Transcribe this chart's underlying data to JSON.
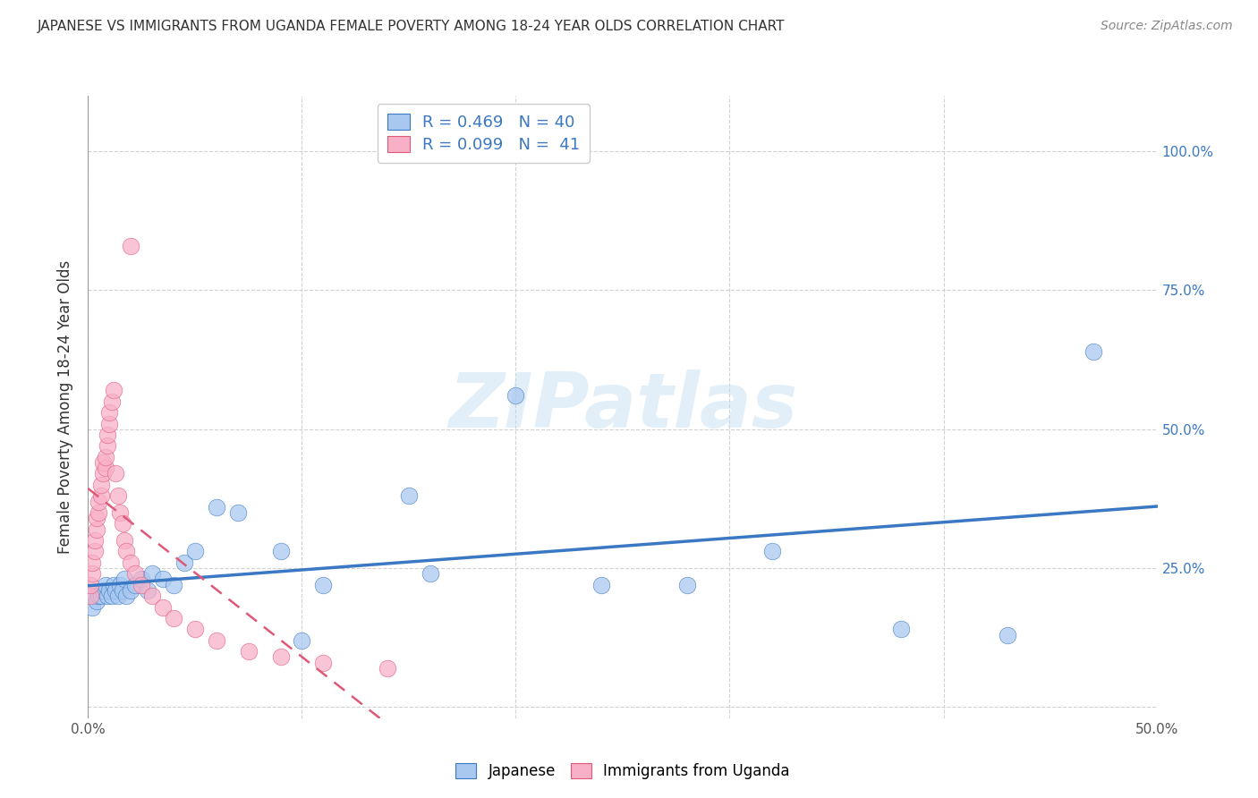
{
  "title": "JAPANESE VS IMMIGRANTS FROM UGANDA FEMALE POVERTY AMONG 18-24 YEAR OLDS CORRELATION CHART",
  "source": "Source: ZipAtlas.com",
  "ylabel": "Female Poverty Among 18-24 Year Olds",
  "xlim": [
    0.0,
    0.5
  ],
  "ylim": [
    -0.02,
    1.1
  ],
  "xticks": [
    0.0,
    0.1,
    0.2,
    0.3,
    0.4,
    0.5
  ],
  "xticklabels": [
    "0.0%",
    "",
    "",
    "",
    "",
    "50.0%"
  ],
  "yticks": [
    0.0,
    0.25,
    0.5,
    0.75,
    1.0
  ],
  "yticklabels_right": [
    "",
    "25.0%",
    "50.0%",
    "75.0%",
    "100.0%"
  ],
  "watermark_text": "ZIPatlas",
  "legend_line1": "R = 0.469   N = 40",
  "legend_line2": "R = 0.099   N =  41",
  "color_japanese": "#A8C8F0",
  "color_uganda": "#F8B0C8",
  "line_color_japanese": "#3B78C3",
  "line_color_uganda": "#E05878",
  "japanese_x": [
    0.002,
    0.003,
    0.004,
    0.005,
    0.006,
    0.007,
    0.008,
    0.009,
    0.01,
    0.011,
    0.012,
    0.013,
    0.014,
    0.015,
    0.016,
    0.017,
    0.018,
    0.02,
    0.022,
    0.025,
    0.028,
    0.03,
    0.035,
    0.04,
    0.045,
    0.05,
    0.06,
    0.07,
    0.09,
    0.1,
    0.11,
    0.15,
    0.16,
    0.2,
    0.24,
    0.28,
    0.32,
    0.38,
    0.43,
    0.47
  ],
  "japanese_y": [
    0.18,
    0.2,
    0.19,
    0.2,
    0.2,
    0.21,
    0.22,
    0.2,
    0.21,
    0.2,
    0.22,
    0.21,
    0.2,
    0.22,
    0.21,
    0.23,
    0.2,
    0.21,
    0.22,
    0.23,
    0.21,
    0.24,
    0.23,
    0.22,
    0.26,
    0.28,
    0.36,
    0.35,
    0.28,
    0.12,
    0.22,
    0.38,
    0.24,
    0.56,
    0.22,
    0.22,
    0.28,
    0.14,
    0.13,
    0.64
  ],
  "uganda_x": [
    0.001,
    0.001,
    0.002,
    0.002,
    0.003,
    0.003,
    0.004,
    0.004,
    0.005,
    0.005,
    0.006,
    0.006,
    0.007,
    0.007,
    0.008,
    0.008,
    0.009,
    0.009,
    0.01,
    0.01,
    0.011,
    0.012,
    0.013,
    0.014,
    0.015,
    0.016,
    0.017,
    0.018,
    0.02,
    0.022,
    0.025,
    0.03,
    0.035,
    0.04,
    0.05,
    0.06,
    0.075,
    0.09,
    0.11,
    0.14,
    0.02
  ],
  "uganda_y": [
    0.2,
    0.22,
    0.24,
    0.26,
    0.28,
    0.3,
    0.32,
    0.34,
    0.35,
    0.37,
    0.38,
    0.4,
    0.42,
    0.44,
    0.43,
    0.45,
    0.47,
    0.49,
    0.51,
    0.53,
    0.55,
    0.57,
    0.42,
    0.38,
    0.35,
    0.33,
    0.3,
    0.28,
    0.26,
    0.24,
    0.22,
    0.2,
    0.18,
    0.16,
    0.14,
    0.12,
    0.1,
    0.09,
    0.08,
    0.07,
    0.83
  ]
}
